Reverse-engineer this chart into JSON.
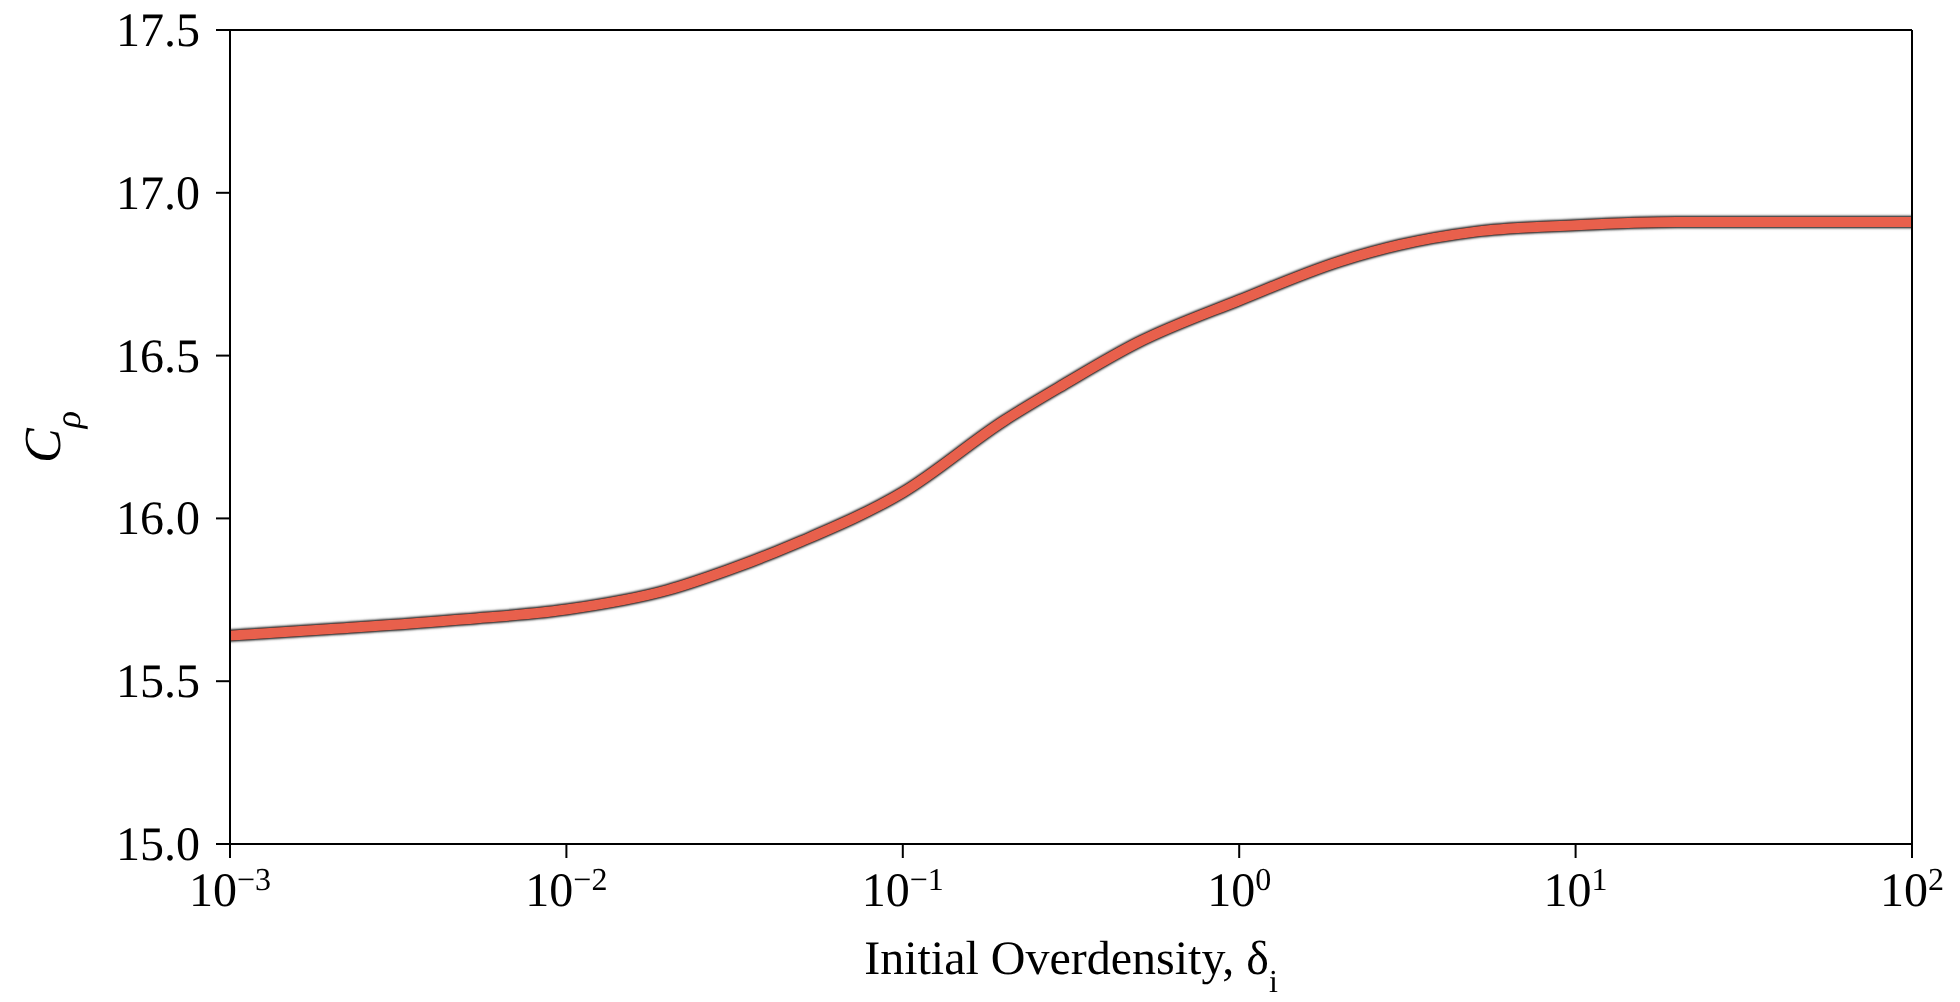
{
  "chart_data": {
    "type": "line",
    "xlabel": "Initial Overdensity, δ$_{i}$",
    "ylabel": "C$_{ρ}$",
    "log": "x",
    "x": [
      0.001,
      0.002,
      0.005,
      0.01,
      0.02,
      0.03,
      0.05,
      0.1,
      0.2,
      0.3,
      0.5,
      1,
      2,
      3,
      5,
      10,
      20,
      50,
      100
    ],
    "series": [
      {
        "color": "#e8604c",
        "values": [
          15.64,
          15.66,
          15.69,
          15.72,
          15.78,
          15.84,
          15.93,
          16.08,
          16.3,
          16.41,
          16.54,
          16.67,
          16.79,
          16.84,
          16.88,
          16.9,
          16.91,
          16.91,
          16.91
        ]
      }
    ],
    "xlim": [
      0.001,
      100
    ],
    "xticks": [
      {
        "value": 0.001,
        "label": "10$^{−3}$"
      },
      {
        "value": 0.01,
        "label": "10$^{−2}$"
      },
      {
        "value": 0.1,
        "label": "10$^{−1}$"
      },
      {
        "value": 1,
        "label": "10$^{0}$"
      },
      {
        "value": 10,
        "label": "10$^{1}$"
      },
      {
        "value": 100,
        "label": "10$^{2}$"
      }
    ],
    "ylim": [
      15,
      17.5
    ],
    "yticks": [
      {
        "value": 15,
        "label": "15.0"
      },
      {
        "value": 15.5,
        "label": "15.5"
      },
      {
        "value": 16,
        "label": "16.0"
      },
      {
        "value": 16.5,
        "label": "16.5"
      },
      {
        "value": 17,
        "label": "17.0"
      },
      {
        "value": 17.5,
        "label": "17.5"
      }
    ],
    "grid": false,
    "legend": false,
    "marker": "none",
    "line_style": "solid"
  }
}
